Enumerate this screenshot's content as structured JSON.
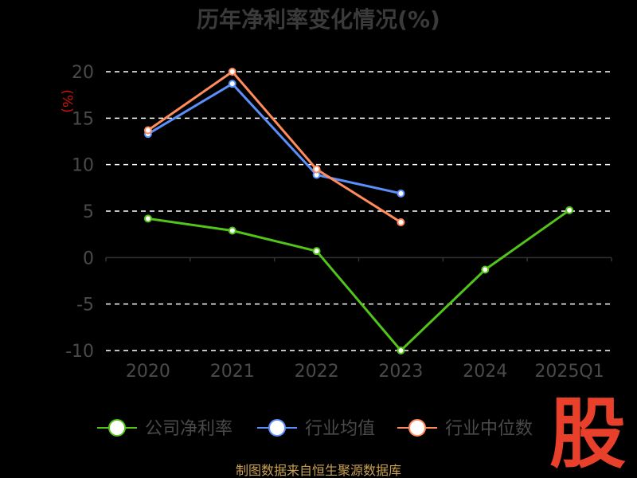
{
  "chart_data": {
    "type": "line",
    "title": "历年净利率变化情况(%)",
    "ylabel": "(%)",
    "categories": [
      "2020",
      "2021",
      "2022",
      "2023",
      "2024",
      "2025Q1"
    ],
    "yticks": [
      "20",
      "15",
      "10",
      "5",
      "0",
      "-5",
      "-10"
    ],
    "ylim": [
      -10,
      20
    ],
    "grid": true,
    "legend_position": "bottom",
    "series": [
      {
        "name": "公司净利率",
        "color": "#52c41a",
        "values": [
          4.2,
          2.9,
          0.7,
          -10.0,
          -1.3,
          5.1
        ]
      },
      {
        "name": "行业均值",
        "color": "#5b8ff9",
        "values": [
          13.3,
          18.7,
          8.9,
          6.9,
          null,
          null
        ]
      },
      {
        "name": "行业中位数",
        "color": "#ff8c5a",
        "values": [
          13.7,
          20.0,
          9.5,
          3.8,
          null,
          null
        ]
      }
    ]
  },
  "footer": {
    "source": "制图数据来自恒生聚源数据库"
  },
  "logo": {
    "text": "股"
  }
}
